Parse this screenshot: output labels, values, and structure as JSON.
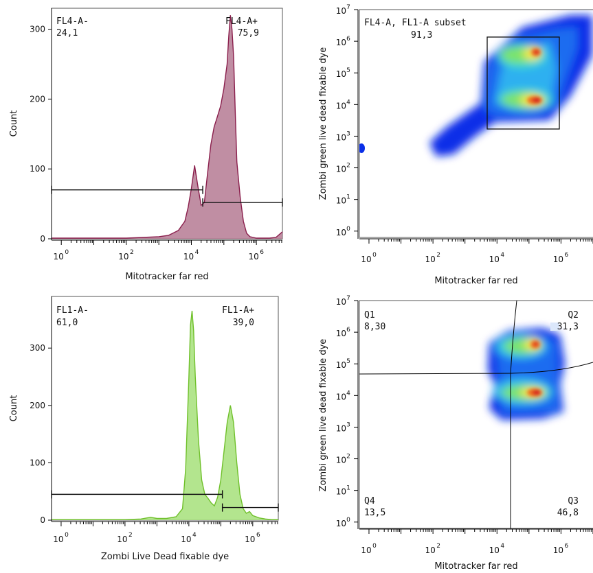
{
  "chart_data": [
    {
      "type": "area",
      "panel": "top-left",
      "xlabel": "Mitotracker far red",
      "ylabel": "Count",
      "xscale": "log",
      "xlim_exp": [
        -0.3,
        6.8
      ],
      "ylim": [
        0,
        330
      ],
      "x_tick_labels": [
        "10",
        "10",
        "10",
        "10"
      ],
      "x_tick_exps": [
        "0",
        "2",
        "4",
        "6"
      ],
      "x_tick_values": [
        0,
        2,
        4,
        6
      ],
      "y_ticks": [
        0,
        100,
        200,
        300
      ],
      "y_tick_labels": [
        "0",
        "100",
        "200",
        "300"
      ],
      "fill": "#b57a93",
      "stroke": "#8a1e4c",
      "curve_exp": [
        -0.3,
        0,
        1,
        2,
        2.5,
        3,
        3.3,
        3.6,
        3.8,
        3.9,
        4.0,
        4.1,
        4.2,
        4.3,
        4.4,
        4.5,
        4.6,
        4.7,
        4.8,
        4.9,
        5.0,
        5.1,
        5.15,
        5.2,
        5.25,
        5.3,
        5.35,
        5.4,
        5.5,
        5.6,
        5.7,
        5.8,
        6.0,
        6.2,
        6.4,
        6.6,
        6.8
      ],
      "curve_count": [
        1,
        1,
        1,
        1,
        2,
        3,
        5,
        12,
        25,
        45,
        72,
        105,
        75,
        48,
        52,
        95,
        135,
        160,
        175,
        190,
        215,
        250,
        290,
        320,
        300,
        260,
        180,
        110,
        60,
        25,
        8,
        3,
        1,
        1,
        1,
        2,
        10
      ],
      "gates": [
        {
          "name": "FL4-A-",
          "value": "24,1",
          "x_from": -0.3,
          "x_to": 4.35,
          "y": 70
        },
        {
          "name": "FL4-A+",
          "value": "75,9",
          "x_from": 4.35,
          "x_to": 6.8,
          "y": 52
        }
      ]
    },
    {
      "type": "heatmap",
      "panel": "top-right",
      "xlabel": "Mitotracker far red",
      "ylabel": "Zombi green live dead fixable dye",
      "xscale": "log",
      "yscale": "log",
      "xlim_exp": [
        -0.3,
        7.0
      ],
      "ylim_exp": [
        -0.2,
        7.0
      ],
      "x_tick_labels": [
        "10",
        "10",
        "10",
        "10"
      ],
      "x_tick_exps": [
        "0",
        "2",
        "4",
        "6"
      ],
      "x_tick_values": [
        0,
        2,
        4,
        6
      ],
      "y_tick_labels": [
        "10",
        "10",
        "10",
        "10",
        "10",
        "10",
        "10",
        "10"
      ],
      "y_tick_exps": [
        "0",
        "1",
        "2",
        "3",
        "4",
        "5",
        "6",
        "7"
      ],
      "y_tick_values": [
        0,
        1,
        2,
        3,
        4,
        5,
        6,
        7
      ],
      "gate": {
        "name": "FL4-A, FL1-A subset",
        "value": "91,3",
        "x_exp": [
          3.85,
          6.0
        ],
        "y_exp": [
          3.4,
          6.2
        ]
      }
    },
    {
      "type": "area",
      "panel": "bottom-left",
      "xlabel": "Zombi Live Dead fixable dye",
      "ylabel": "Count",
      "xscale": "log",
      "xlim_exp": [
        -0.3,
        6.8
      ],
      "ylim": [
        0,
        390
      ],
      "x_tick_labels": [
        "10",
        "10",
        "10",
        "10"
      ],
      "x_tick_exps": [
        "0",
        "2",
        "4",
        "6"
      ],
      "x_tick_values": [
        0,
        2,
        4,
        6
      ],
      "y_ticks": [
        0,
        100,
        200,
        300
      ],
      "y_tick_labels": [
        "0",
        "100",
        "200",
        "300"
      ],
      "fill": "#a6e07a",
      "stroke": "#6fc02a",
      "curve_exp": [
        -0.3,
        0,
        1,
        2,
        2.5,
        2.8,
        3.0,
        3.3,
        3.6,
        3.8,
        3.9,
        4.0,
        4.05,
        4.1,
        4.15,
        4.2,
        4.3,
        4.4,
        4.5,
        4.6,
        4.7,
        4.8,
        4.9,
        5.0,
        5.1,
        5.2,
        5.3,
        5.4,
        5.5,
        5.6,
        5.7,
        5.8,
        5.9,
        6.0,
        6.2,
        6.4,
        6.6,
        6.8
      ],
      "curve_count": [
        1,
        1,
        1,
        1,
        2,
        5,
        3,
        3,
        6,
        20,
        90,
        250,
        340,
        365,
        330,
        250,
        140,
        70,
        45,
        38,
        30,
        25,
        40,
        70,
        120,
        170,
        200,
        170,
        100,
        45,
        20,
        12,
        15,
        8,
        4,
        2,
        1,
        1
      ],
      "gates": [
        {
          "name": "FL1-A-",
          "value": "61,0",
          "x_from": -0.3,
          "x_to": 5.05,
          "y": 45
        },
        {
          "name": "FL1-A+",
          "value": "39,0",
          "x_from": 5.05,
          "x_to": 6.8,
          "y": 22
        }
      ]
    },
    {
      "type": "heatmap",
      "panel": "bottom-right",
      "xlabel": "Mitotracker far red",
      "ylabel": "Zombi green live dead fixable dye",
      "xscale": "log",
      "yscale": "log",
      "xlim_exp": [
        -0.3,
        7.0
      ],
      "ylim_exp": [
        -0.2,
        7.0
      ],
      "x_tick_labels": [
        "10",
        "10",
        "10",
        "10"
      ],
      "x_tick_exps": [
        "0",
        "2",
        "4",
        "6"
      ],
      "x_tick_values": [
        0,
        2,
        4,
        6
      ],
      "y_tick_labels": [
        "10",
        "10",
        "10",
        "10",
        "10",
        "10",
        "10",
        "10"
      ],
      "y_tick_exps": [
        "0",
        "1",
        "2",
        "3",
        "4",
        "5",
        "6",
        "7"
      ],
      "y_tick_values": [
        0,
        1,
        2,
        3,
        4,
        5,
        6,
        7
      ],
      "quadrants": [
        {
          "name": "Q1",
          "value": "8,30"
        },
        {
          "name": "Q2",
          "value": "31,3"
        },
        {
          "name": "Q3",
          "value": "46,8"
        },
        {
          "name": "Q4",
          "value": "13,5"
        }
      ]
    }
  ]
}
